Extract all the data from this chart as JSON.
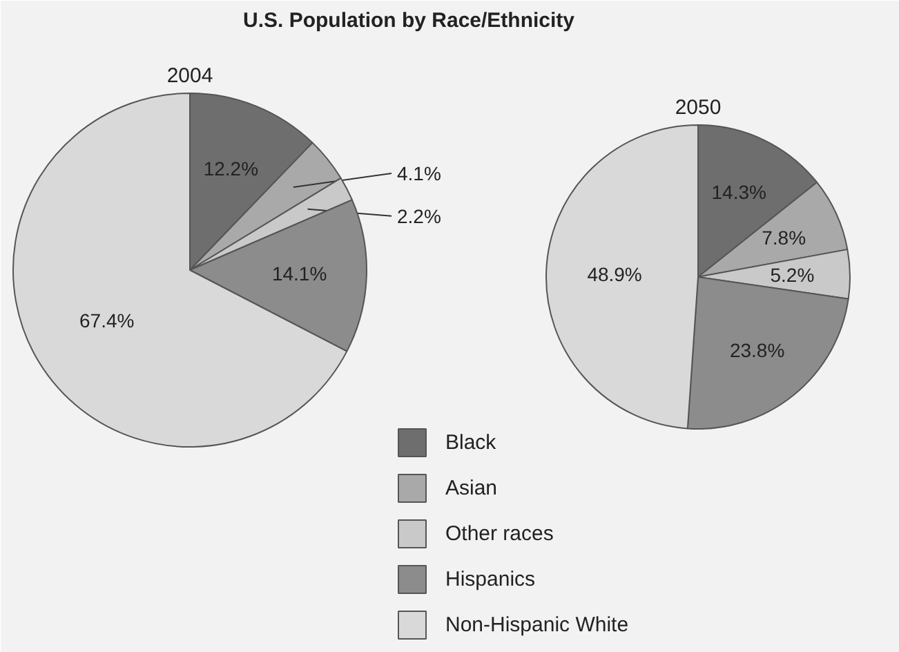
{
  "chart_data": [
    {
      "type": "pie",
      "title": "U.S. Population by Race/Ethnicity",
      "subtitle": "2004",
      "categories": [
        "Black",
        "Asian",
        "Other races",
        "Hispanics",
        "Non-Hispanic White"
      ],
      "values": [
        12.2,
        4.1,
        2.2,
        14.1,
        67.4
      ],
      "value_labels": [
        "12.2%",
        "4.1%",
        "2.2%",
        "14.1%",
        "67.4%"
      ],
      "colors": [
        "#6e6e6e",
        "#a9a9a9",
        "#c9c9c9",
        "#8c8c8c",
        "#d9d9d9"
      ],
      "legend": "bottom right"
    },
    {
      "type": "pie",
      "subtitle": "2050",
      "values": [
        14.3,
        7.8,
        5.2,
        23.8,
        48.9
      ],
      "value_labels": [
        "14.3%",
        "7.8%",
        "5.2%",
        "23.8%",
        "48.9%"
      ],
      "colors": [
        "#6e6e6e",
        "#a9a9a9",
        "#c9c9c9",
        "#8c8c8c",
        "#d9d9d9"
      ]
    }
  ]
}
